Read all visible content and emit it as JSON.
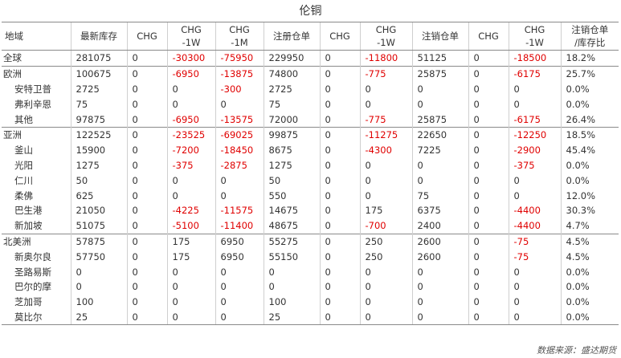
{
  "title": "伦铜",
  "headers": [
    [
      "地域"
    ],
    [
      "最新库存"
    ],
    [
      "CHG"
    ],
    [
      "CHG",
      "-1W"
    ],
    [
      "CHG",
      "-1M"
    ],
    [
      "注册仓单"
    ],
    [
      "CHG"
    ],
    [
      "CHG",
      "-1W"
    ],
    [
      "注销仓单"
    ],
    [
      "CHG"
    ],
    [
      "CHG",
      "-1W"
    ],
    [
      "注销仓单",
      "/库存比"
    ]
  ],
  "rows": [
    {
      "name": "全球",
      "sub": false,
      "group_start": true,
      "cells": [
        "281075",
        "0",
        "-30300",
        "-75950",
        "229950",
        "0",
        "-11800",
        "51125",
        "0",
        "-18500",
        "18.2%"
      ]
    },
    {
      "name": "欧洲",
      "sub": false,
      "group_start": true,
      "cells": [
        "100675",
        "0",
        "-6950",
        "-13875",
        "74800",
        "0",
        "-775",
        "25875",
        "0",
        "-6175",
        "25.7%"
      ]
    },
    {
      "name": "安特卫普",
      "sub": true,
      "group_start": false,
      "cells": [
        "2725",
        "0",
        "0",
        "-300",
        "2725",
        "0",
        "0",
        "0",
        "0",
        "0",
        "0.0%"
      ]
    },
    {
      "name": "弗利辛恩",
      "sub": true,
      "group_start": false,
      "cells": [
        "75",
        "0",
        "0",
        "0",
        "75",
        "0",
        "0",
        "0",
        "0",
        "0",
        "0.0%"
      ]
    },
    {
      "name": "其他",
      "sub": true,
      "group_start": false,
      "cells": [
        "97875",
        "0",
        "-6950",
        "-13575",
        "72000",
        "0",
        "-775",
        "25875",
        "0",
        "-6175",
        "26.4%"
      ]
    },
    {
      "name": "亚洲",
      "sub": false,
      "group_start": true,
      "cells": [
        "122525",
        "0",
        "-23525",
        "-69025",
        "99875",
        "0",
        "-11275",
        "22650",
        "0",
        "-12250",
        "18.5%"
      ]
    },
    {
      "name": "釜山",
      "sub": true,
      "group_start": false,
      "cells": [
        "15900",
        "0",
        "-7200",
        "-18450",
        "8675",
        "0",
        "-4300",
        "7225",
        "0",
        "-2900",
        "45.4%"
      ]
    },
    {
      "name": "光阳",
      "sub": true,
      "group_start": false,
      "cells": [
        "1275",
        "0",
        "-375",
        "-2875",
        "1275",
        "0",
        "0",
        "0",
        "0",
        "-375",
        "0.0%"
      ]
    },
    {
      "name": "仁川",
      "sub": true,
      "group_start": false,
      "cells": [
        "50",
        "0",
        "0",
        "0",
        "50",
        "0",
        "0",
        "0",
        "0",
        "0",
        "0.0%"
      ]
    },
    {
      "name": "柔佛",
      "sub": true,
      "group_start": false,
      "cells": [
        "625",
        "0",
        "0",
        "0",
        "550",
        "0",
        "0",
        "75",
        "0",
        "0",
        "12.0%"
      ]
    },
    {
      "name": "巴生港",
      "sub": true,
      "group_start": false,
      "cells": [
        "21050",
        "0",
        "-4225",
        "-11575",
        "14675",
        "0",
        "175",
        "6375",
        "0",
        "-4400",
        "30.3%"
      ]
    },
    {
      "name": "新加坡",
      "sub": true,
      "group_start": false,
      "cells": [
        "51075",
        "0",
        "-5100",
        "-11400",
        "48675",
        "0",
        "-700",
        "2400",
        "0",
        "-4400",
        "4.7%"
      ]
    },
    {
      "name": "北美洲",
      "sub": false,
      "group_start": true,
      "cells": [
        "57875",
        "0",
        "175",
        "6950",
        "55275",
        "0",
        "250",
        "2600",
        "0",
        "-75",
        "4.5%"
      ]
    },
    {
      "name": "新奥尔良",
      "sub": true,
      "group_start": false,
      "cells": [
        "57750",
        "0",
        "175",
        "6950",
        "55150",
        "0",
        "250",
        "2600",
        "0",
        "-75",
        "4.5%"
      ]
    },
    {
      "name": "圣路易斯",
      "sub": true,
      "group_start": false,
      "cells": [
        "0",
        "0",
        "0",
        "0",
        "0",
        "0",
        "0",
        "0",
        "0",
        "0",
        "0.0%"
      ]
    },
    {
      "name": "巴尔的摩",
      "sub": true,
      "group_start": false,
      "cells": [
        "0",
        "0",
        "0",
        "0",
        "0",
        "0",
        "0",
        "0",
        "0",
        "0",
        "0.0%"
      ]
    },
    {
      "name": "芝加哥",
      "sub": true,
      "group_start": false,
      "cells": [
        "100",
        "0",
        "0",
        "0",
        "100",
        "0",
        "0",
        "0",
        "0",
        "0",
        "0.0%"
      ]
    },
    {
      "name": "莫比尔",
      "sub": true,
      "group_start": false,
      "cells": [
        "25",
        "0",
        "0",
        "0",
        "25",
        "0",
        "0",
        "0",
        "0",
        "0",
        "0.0%"
      ]
    }
  ],
  "source": "数据来源：盛达期货",
  "colors": {
    "negative": "#e00000",
    "text": "#333333",
    "rule": "#8a8a8a"
  }
}
